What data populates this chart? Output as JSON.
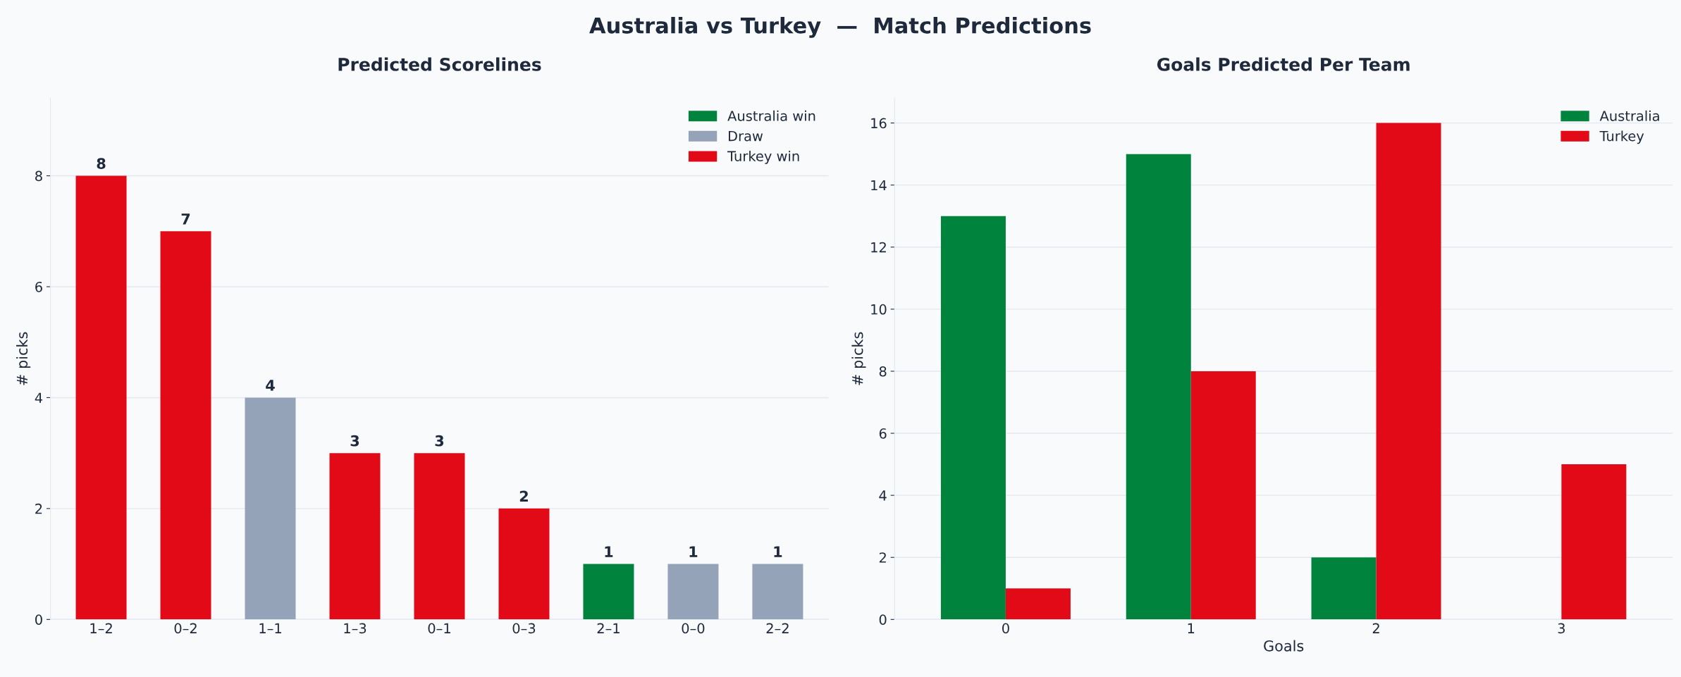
{
  "chart_data": [
    {
      "type": "bar",
      "annotations": [
        "Australia vs Turkey  —  Match Predictions"
      ],
      "title": "Predicted Scorelines",
      "ylabel": "# picks",
      "categories": [
        "1–2",
        "0–2",
        "1–1",
        "1–3",
        "0–1",
        "0–3",
        "2–1",
        "0–0",
        "2–2"
      ],
      "stacked": true,
      "series": [
        {
          "name": "Australia win",
          "color": "#00843d",
          "values": [
            null,
            null,
            null,
            null,
            null,
            null,
            1,
            null,
            null
          ]
        },
        {
          "name": "Draw",
          "color": "#94a3b8",
          "values": [
            null,
            null,
            4,
            null,
            null,
            null,
            null,
            1,
            1
          ]
        },
        {
          "name": "Turkey win",
          "color": "#e30a17",
          "values": [
            8,
            7,
            null,
            3,
            3,
            2,
            null,
            null,
            null
          ]
        }
      ],
      "ylim": [
        0,
        9.4
      ],
      "yticks": [
        0,
        2,
        4,
        6,
        8
      ],
      "grid": "y",
      "legend": "top right",
      "data_labels": true
    },
    {
      "type": "bar",
      "title": "Goals Predicted Per Team",
      "xlabel": "Goals",
      "ylabel": "# picks",
      "categories": [
        "0",
        "1",
        "2",
        "3"
      ],
      "series": [
        {
          "name": "Australia",
          "color": "#00843d",
          "values": [
            13,
            15,
            2,
            0
          ]
        },
        {
          "name": "Turkey",
          "color": "#e30a17",
          "values": [
            1,
            8,
            16,
            5
          ]
        }
      ],
      "ylim": [
        0,
        16.8
      ],
      "yticks": [
        0,
        2,
        4,
        6,
        8,
        10,
        12,
        14,
        16
      ],
      "grid": "y",
      "legend": "top right"
    }
  ]
}
